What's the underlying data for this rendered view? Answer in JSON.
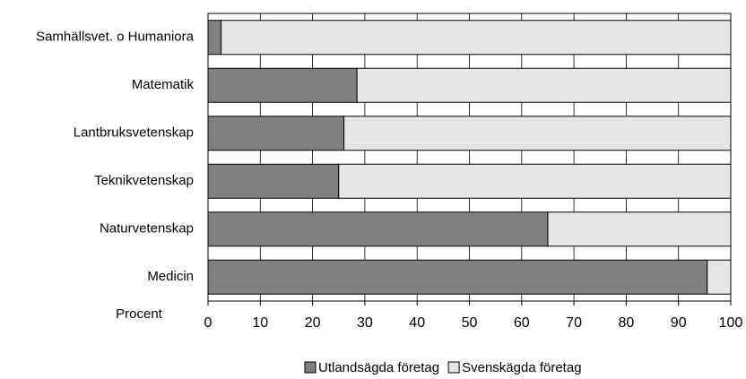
{
  "chart_data": {
    "type": "stacked-barh",
    "categories": [
      "Samhällsvet. o Humaniora",
      "Matematik",
      "Lantbruksvetenskap",
      "Teknikvetenskap",
      "Naturvetenskap",
      "Medicin"
    ],
    "series": [
      {
        "name": "Utlandsägda företag",
        "color": "#808080",
        "values": [
          2.5,
          28.5,
          26,
          25,
          65,
          95.5
        ]
      },
      {
        "name": "Svenskägda företag",
        "color": "#e6e6e6",
        "values": [
          97.5,
          71.5,
          74,
          75,
          35,
          4.5
        ]
      }
    ],
    "xlabel": "Procent",
    "xlim": [
      0,
      100
    ],
    "xticks": [
      0,
      10,
      20,
      30,
      40,
      50,
      60,
      70,
      80,
      90,
      100
    ],
    "grid": true
  }
}
